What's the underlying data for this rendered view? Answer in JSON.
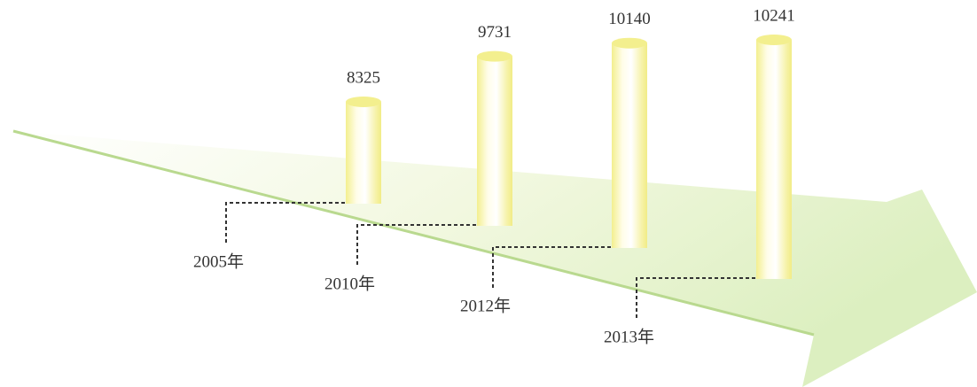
{
  "chart_data": {
    "type": "bar",
    "categories": [
      "2005年",
      "2010年",
      "2012年",
      "2013年"
    ],
    "values": [
      8325,
      9731,
      10140,
      10241
    ],
    "color": "#f3ef8e"
  }
}
